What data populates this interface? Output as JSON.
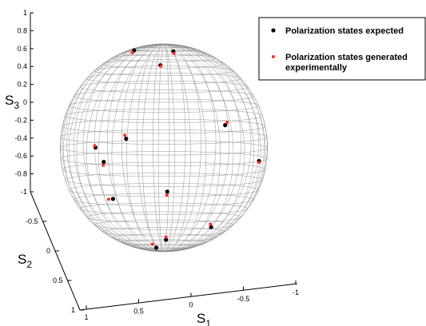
{
  "chart_data": {
    "type": "scatter",
    "subtype": "poincare-sphere-3d",
    "xlabel": "S",
    "xlabel_sub": "1",
    "ylabel": "S",
    "ylabel_sub": "2",
    "zlabel": "S",
    "zlabel_sub": "3",
    "x_ticks": [
      "1",
      "0.5",
      "0",
      "-0.5",
      "-1"
    ],
    "y_ticks": [
      "-0.5",
      "0",
      "0.5",
      "1"
    ],
    "z_ticks": [
      "1",
      "0.8",
      "0.6",
      "0.4",
      "0.2",
      "0",
      "-0.2",
      "-0.4",
      "-0.6",
      "-0.8",
      "-1"
    ],
    "xlim": [
      -1,
      1
    ],
    "ylim": [
      -1,
      1
    ],
    "zlim": [
      -1,
      1
    ],
    "grid": true,
    "legend_position": "top-right",
    "series": [
      {
        "name": "Polarization states expected",
        "color": "#000000",
        "points": [
          {
            "s1": 0.0,
            "s2": -0.44,
            "s3": 0.9
          },
          {
            "s1": 0.17,
            "s2": -0.64,
            "s3": 0.75
          },
          {
            "s1": 0.25,
            "s2": 0.2,
            "s3": 0.95
          },
          {
            "s1": 0.35,
            "s2": 0.1,
            "s3": 0.09
          },
          {
            "s1": -0.07,
            "s2": 0.17,
            "s3": -0.41
          },
          {
            "s1": 0.5,
            "s2": 0.0,
            "s3": -0.5
          },
          {
            "s1": -0.55,
            "s2": -0.25,
            "s3": 0.21
          },
          {
            "s1": -0.55,
            "s2": 0.4,
            "s3": -0.73
          },
          {
            "s1": -0.83,
            "s2": -0.5,
            "s3": -0.15
          },
          {
            "s1": 0.8,
            "s2": -0.6,
            "s3": -0.05
          },
          {
            "s1": 0.4,
            "s2": 0.9,
            "s3": -0.08
          },
          {
            "s1": -0.13,
            "s2": 0.51,
            "s3": -0.85
          },
          {
            "s1": 0.0,
            "s2": 0.35,
            "s3": -0.94
          }
        ]
      },
      {
        "name": "Polarization states generated experimentally",
        "color": "#ff2a2a",
        "points": [
          {
            "s1": 0.0,
            "s2": -0.47,
            "s3": 0.88
          },
          {
            "s1": 0.17,
            "s2": -0.66,
            "s3": 0.74
          },
          {
            "s1": 0.26,
            "s2": 0.23,
            "s3": 0.93
          },
          {
            "s1": 0.37,
            "s2": 0.07,
            "s3": 0.12
          },
          {
            "s1": -0.08,
            "s2": 0.24,
            "s3": -0.44
          },
          {
            "s1": 0.53,
            "s2": 0.06,
            "s3": -0.5
          },
          {
            "s1": -0.58,
            "s2": -0.2,
            "s3": 0.24
          },
          {
            "s1": -0.55,
            "s2": 0.43,
            "s3": -0.7
          },
          {
            "s1": -0.84,
            "s2": -0.46,
            "s3": -0.16
          },
          {
            "s1": 0.8,
            "s2": -0.56,
            "s3": -0.03
          },
          {
            "s1": 0.4,
            "s2": 0.92,
            "s3": -0.11
          },
          {
            "s1": -0.14,
            "s2": 0.56,
            "s3": -0.82
          },
          {
            "s1": 0.02,
            "s2": 0.43,
            "s3": -0.9
          }
        ]
      }
    ]
  }
}
